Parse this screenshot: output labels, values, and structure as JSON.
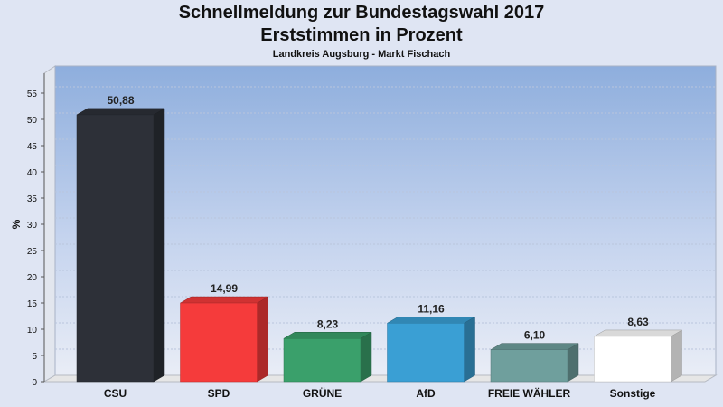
{
  "chart_data": {
    "type": "bar",
    "title": "Schnellmeldung zur Bundestagswahl 2017",
    "subtitle": "Erststimmen in Prozent",
    "caption": "Landkreis Augsburg - Markt Fischach",
    "ylabel": "%",
    "ylim": [
      0,
      55
    ],
    "yticks": [
      0,
      5,
      10,
      15,
      20,
      25,
      30,
      35,
      40,
      45,
      50,
      55
    ],
    "grid": true,
    "categories": [
      "CSU",
      "SPD",
      "GRÜNE",
      "AfD",
      "FREIE WÄHLER",
      "Sonstige"
    ],
    "values": [
      50.88,
      14.99,
      8.23,
      11.16,
      6.1,
      8.63
    ],
    "value_labels": [
      "50,88",
      "14,99",
      "8,23",
      "11,16",
      "6,10",
      "8,63"
    ],
    "colors": [
      "#2d3038",
      "#f53b3b",
      "#3aa06b",
      "#3a9fd4",
      "#6f9f9d",
      "#ffffff"
    ]
  }
}
